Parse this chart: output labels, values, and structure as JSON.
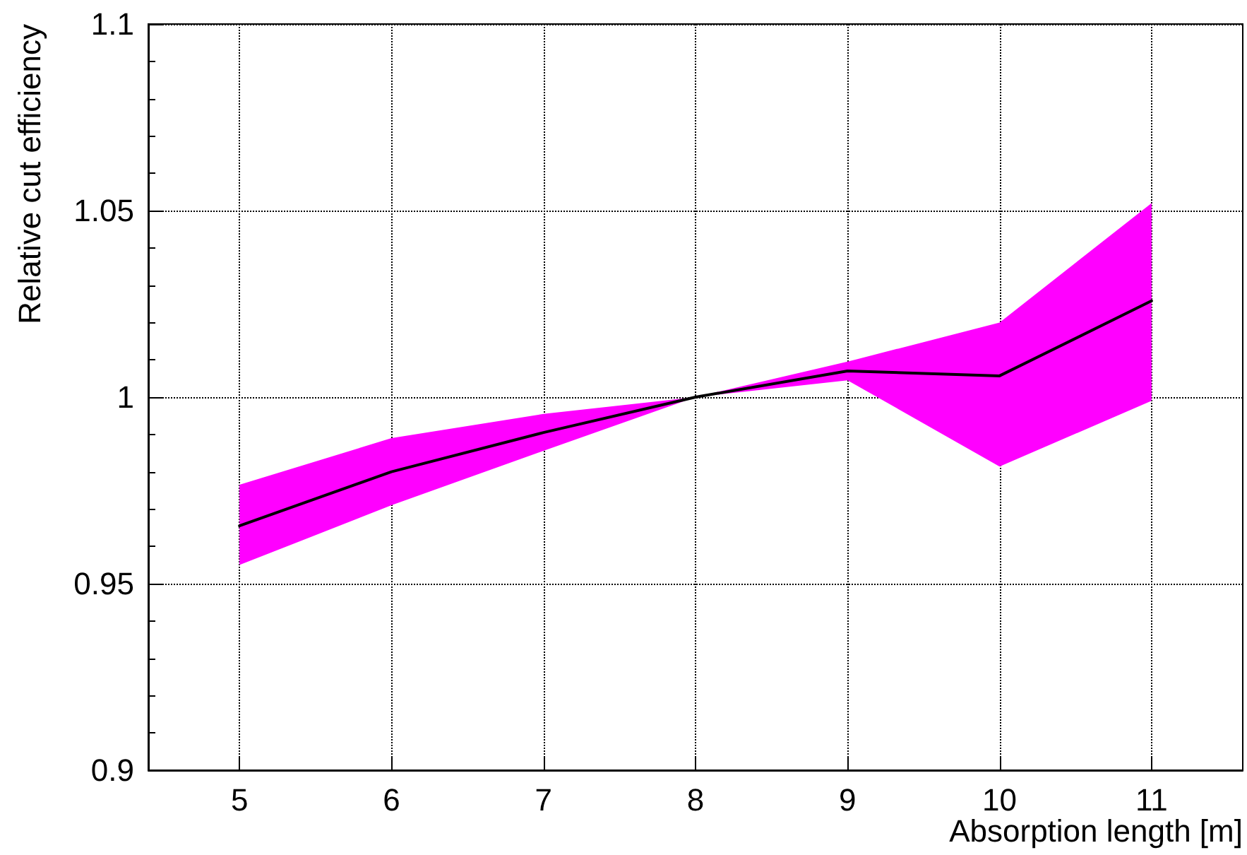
{
  "chart_data": {
    "type": "line",
    "xlabel": "Absorption length [m]",
    "ylabel": "Relative cut efficiency",
    "x": [
      5,
      6,
      7,
      8,
      9,
      10,
      11
    ],
    "series": [
      {
        "color": "#000000",
        "values": [
          0.9655,
          0.98,
          0.9905,
          1.0,
          1.007,
          1.0057,
          1.0258
        ],
        "lower": [
          0.955,
          0.971,
          0.9856,
          1.0,
          1.0045,
          0.9814,
          0.999
        ],
        "upper": [
          0.9765,
          0.989,
          0.9955,
          1.0,
          1.0095,
          1.02,
          1.052
        ]
      }
    ],
    "xlim": [
      4.4,
      11.6
    ],
    "xticks": [
      5,
      6,
      7,
      8,
      9,
      10,
      11
    ],
    "ylim": [
      0.9,
      1.1
    ],
    "yticks": [
      0.9,
      0.95,
      1,
      1.05,
      1.1
    ],
    "grid": true,
    "marker": "none",
    "line_style": "solid"
  }
}
